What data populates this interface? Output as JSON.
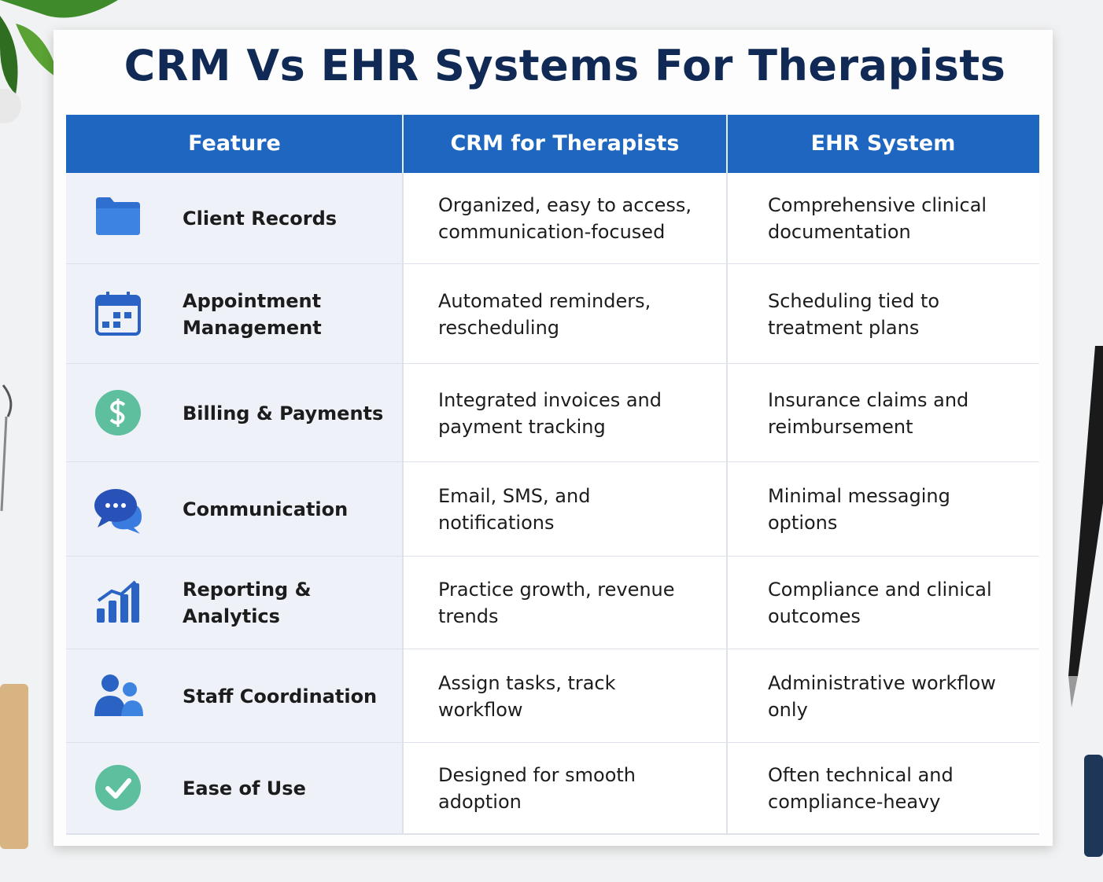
{
  "title": "CRM Vs EHR Systems For Therapists",
  "table": {
    "header": [
      "Feature",
      "CRM for Therapists",
      "EHR System"
    ],
    "rows": [
      [
        "Client Records",
        "Organized, easy to access, communication-focused",
        "Comprehensive clinical documentation"
      ],
      [
        "Appointment Management",
        "Automated reminders, rescheduling",
        "Scheduling tied to treatment plans"
      ],
      [
        "Billing & Payments",
        "Integrated invoices and payment tracking",
        "Insurance claims and reimbursement"
      ],
      [
        "Communication",
        "Email, SMS, and notifications",
        "Minimal messaging options"
      ],
      [
        "Reporting & Analytics",
        "Practice growth, revenue trends",
        "Compliance and clinical outcomes"
      ],
      [
        "Staff Coordination",
        "Assign tasks, track workflow",
        "Administrative workflow only"
      ],
      [
        "Ease of Use",
        "Designed for smooth adoption",
        "Often technical and compliance-heavy"
      ]
    ]
  }
}
